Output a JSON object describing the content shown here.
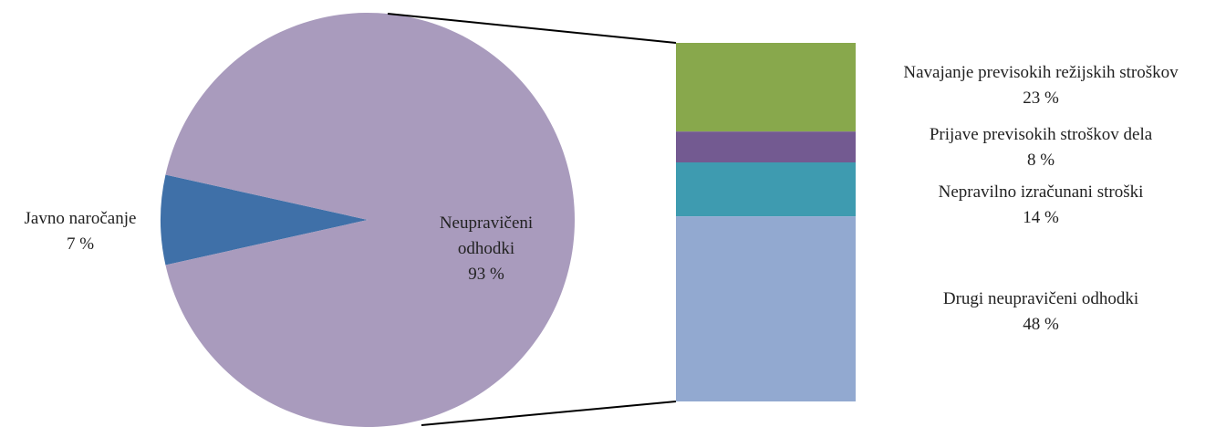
{
  "chart_data": {
    "type": "bar-of-pie",
    "categories": [
      "Javno naročanje",
      "Neupravičeni odhodki"
    ],
    "values": [
      7,
      93
    ],
    "value_labels": [
      "7 %",
      "93 %"
    ],
    "colors": [
      "#3f70a8",
      "#a99bbd"
    ],
    "breakdown": {
      "categories": [
        "Navajanje previsokih režijskih stroškov",
        "Prijave previsokih stroškov dela",
        "Nepravilno izračunani stroški",
        "Drugi neupravičeni odhodki"
      ],
      "values": [
        23,
        8,
        14,
        48
      ],
      "value_labels": [
        "23 %",
        "8 %",
        "14 %",
        "48 %"
      ],
      "colors": [
        "#88a84c",
        "#735a91",
        "#3e9bb0",
        "#92a9d0"
      ]
    }
  }
}
